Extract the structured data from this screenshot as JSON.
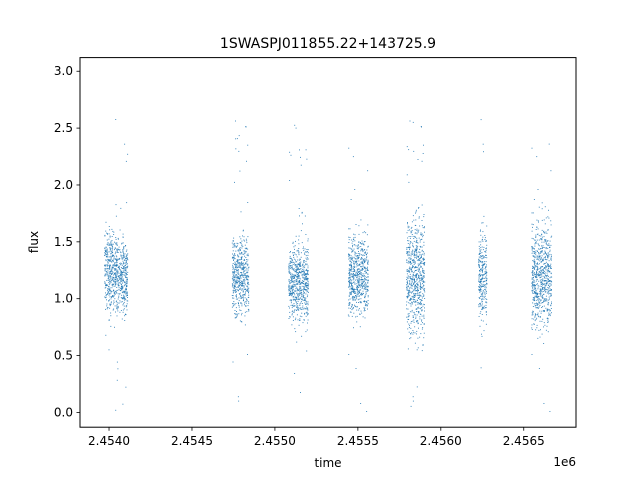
{
  "chart_data": {
    "type": "scatter",
    "title": "1SWASPJ011855.22+143725.9",
    "xlabel": "time",
    "ylabel": "flux",
    "x_offset_label": "1e6",
    "xlim": [
      2453825,
      2456815
    ],
    "ylim": [
      -0.13,
      3.12
    ],
    "x_ticks": [
      2.454,
      2.4545,
      2.455,
      2.4555,
      2.456,
      2.4565
    ],
    "x_tick_labels": [
      "2.4540",
      "2.4545",
      "2.4550",
      "2.4555",
      "2.4560",
      "2.4565"
    ],
    "y_ticks": [
      0.0,
      0.5,
      1.0,
      1.5,
      2.0,
      2.5,
      3.0
    ],
    "y_tick_labels": [
      "0.0",
      "0.5",
      "1.0",
      "1.5",
      "2.0",
      "2.5",
      "3.0"
    ],
    "grid": false,
    "series": [
      {
        "color": "#1f77b4",
        "observing_seasons": [
          {
            "x_start": 2453970,
            "x_end": 2454040,
            "median": 1.25,
            "spread": 0.3
          },
          {
            "x_start": 2454040,
            "x_end": 2454110,
            "median": 1.2,
            "spread": 0.3
          },
          {
            "x_start": 2454740,
            "x_end": 2454840,
            "median": 1.2,
            "spread": 0.3
          },
          {
            "x_start": 2455080,
            "x_end": 2455200,
            "median": 1.15,
            "spread": 0.3
          },
          {
            "x_start": 2455440,
            "x_end": 2455560,
            "median": 1.2,
            "spread": 0.3
          },
          {
            "x_start": 2455790,
            "x_end": 2455900,
            "median": 1.2,
            "spread": 0.45
          },
          {
            "x_start": 2456225,
            "x_end": 2456275,
            "median": 1.2,
            "spread": 0.35
          },
          {
            "x_start": 2456545,
            "x_end": 2456665,
            "median": 1.2,
            "spread": 0.4
          }
        ]
      }
    ]
  }
}
